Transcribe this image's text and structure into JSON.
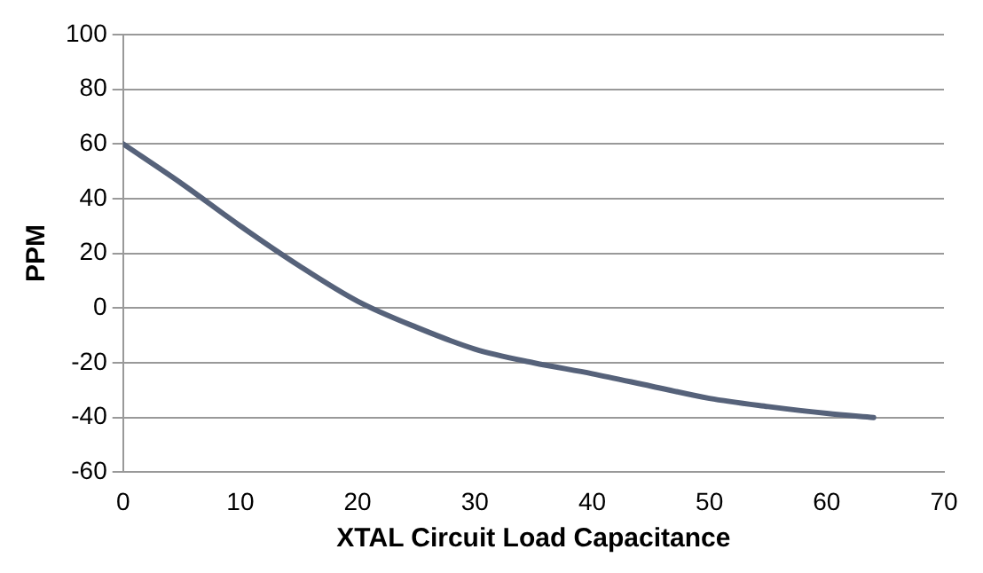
{
  "chart_data": {
    "type": "line",
    "xlabel": "XTAL Circuit Load Capacitance",
    "ylabel": "PPM",
    "x": [
      0,
      5,
      10,
      15,
      20,
      25,
      30,
      35,
      40,
      45,
      50,
      55,
      60,
      64
    ],
    "series": [
      {
        "color": "#56627a",
        "values": [
          60,
          45.5,
          30,
          15.5,
          2.5,
          -7,
          -15,
          -20,
          -24,
          -28.5,
          -33,
          -36,
          -38.5,
          -40
        ]
      }
    ],
    "xlim": [
      0,
      70
    ],
    "xticks": [
      0,
      10,
      20,
      30,
      40,
      50,
      60,
      70
    ],
    "ylim": [
      -60,
      100
    ],
    "yticks": [
      -60,
      -40,
      -20,
      0,
      20,
      40,
      60,
      80,
      100
    ],
    "grid": "y",
    "legend": false,
    "marker": "none",
    "line_style": "solid"
  }
}
